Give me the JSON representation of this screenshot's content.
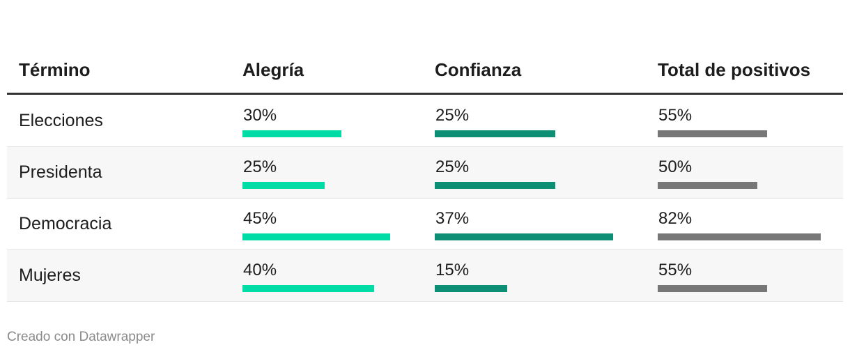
{
  "table": {
    "header": [
      "Término",
      "Alegría",
      "Confianza",
      "Total de positivos"
    ],
    "colors": [
      "#00dca6",
      "#0c8f75",
      "#777777"
    ],
    "rows": [
      {
        "term": "Elecciones",
        "values": [
          30,
          25,
          55
        ],
        "value_labels": [
          "30%",
          "25%",
          "55%"
        ]
      },
      {
        "term": "Presidenta",
        "values": [
          25,
          25,
          50
        ],
        "value_labels": [
          "25%",
          "25%",
          "50%"
        ]
      },
      {
        "term": "Democracia",
        "values": [
          45,
          37,
          82
        ],
        "value_labels": [
          "45%",
          "37%",
          "82%"
        ]
      },
      {
        "term": "Mujeres",
        "values": [
          40,
          15,
          55
        ],
        "value_labels": [
          "40%",
          "15%",
          "55%"
        ]
      }
    ]
  },
  "footer": "Creado con Datawrapper"
}
